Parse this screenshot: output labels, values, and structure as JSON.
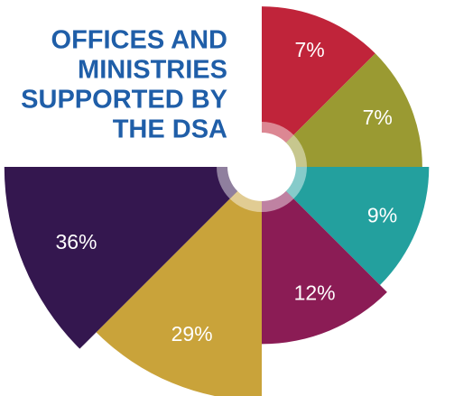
{
  "chart_data": {
    "type": "rose",
    "title": [
      "OFFICES AND",
      "MINISTRIES",
      "SUPPORTED BY",
      "THE DSA"
    ],
    "values": [
      7,
      7,
      9,
      12,
      29,
      36
    ],
    "value_labels": [
      "7%",
      "7%",
      "9%",
      "12%",
      "29%",
      "36%"
    ],
    "colors": [
      "#c0243a",
      "#9a9a32",
      "#23a09e",
      "#8b1c55",
      "#c9a33a",
      "#34174f"
    ]
  }
}
